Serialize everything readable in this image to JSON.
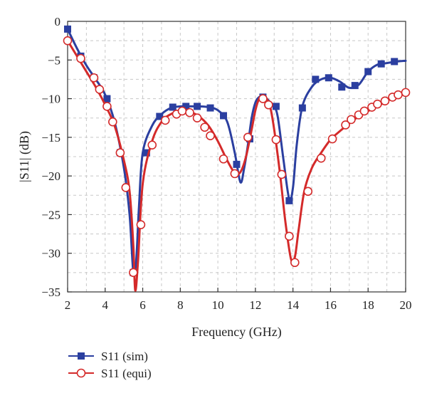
{
  "chart_data": {
    "type": "line",
    "xlabel": "Frequency (GHz)",
    "ylabel": "|S11| (dB)",
    "xlim": [
      2,
      20
    ],
    "ylim": [
      -35,
      0
    ],
    "xticks": [
      2,
      4,
      6,
      8,
      10,
      12,
      14,
      16,
      18,
      20
    ],
    "yticks": [
      0,
      -5,
      -10,
      -15,
      -20,
      -25,
      -30,
      -35
    ],
    "grid": true,
    "legend_position": "bottom-left",
    "series": [
      {
        "name": "S11 (sim)",
        "color": "#2b3fa0",
        "marker": "square-filled",
        "x": [
          2.0,
          2.5,
          3.0,
          3.5,
          4.0,
          4.5,
          5.0,
          5.3,
          5.5,
          5.65,
          5.8,
          6.0,
          6.5,
          7.0,
          7.5,
          8.0,
          8.5,
          9.0,
          9.5,
          10.0,
          10.5,
          10.9,
          11.2,
          11.4,
          11.6,
          11.8,
          12.0,
          12.2,
          12.4,
          12.6,
          12.8,
          13.0,
          13.2,
          13.5,
          13.8,
          14.0,
          14.2,
          14.5,
          15.0,
          15.5,
          16.0,
          16.5,
          17.0,
          17.5,
          18.0,
          18.5,
          19.0,
          19.5,
          20.0
        ],
        "y": [
          -1.0,
          -3.5,
          -5.7,
          -7.5,
          -9.5,
          -13.0,
          -19.0,
          -25.0,
          -32.5,
          -31.0,
          -24.0,
          -17.0,
          -13.5,
          -12.0,
          -11.2,
          -11.0,
          -11.0,
          -11.0,
          -11.1,
          -11.5,
          -13.0,
          -17.0,
          -20.8,
          -19.0,
          -16.0,
          -12.5,
          -10.5,
          -9.8,
          -9.8,
          -10.0,
          -10.5,
          -11.0,
          -12.5,
          -18.0,
          -23.0,
          -21.5,
          -16.0,
          -11.0,
          -8.5,
          -7.5,
          -7.3,
          -7.8,
          -8.6,
          -8.2,
          -6.5,
          -5.6,
          -5.4,
          -5.2,
          -5.1
        ],
        "markers_x": [
          2.0,
          2.7,
          3.4,
          4.1,
          4.8,
          5.5,
          6.2,
          6.9,
          7.6,
          8.3,
          8.9,
          9.6,
          10.3,
          11.0,
          11.7,
          12.4,
          13.1,
          13.8,
          14.5,
          15.2,
          15.9,
          16.6,
          17.3,
          18.0,
          18.7,
          19.4
        ],
        "markers_y": [
          -1.0,
          -4.5,
          -7.3,
          -10.0,
          -17.0,
          -32.5,
          -17.0,
          -12.3,
          -11.1,
          -11.0,
          -11.0,
          -11.2,
          -12.2,
          -18.5,
          -15.2,
          -9.8,
          -11.0,
          -23.2,
          -11.2,
          -7.5,
          -7.3,
          -8.5,
          -8.3,
          -6.5,
          -5.5,
          -5.2
        ]
      },
      {
        "name": "S11 (equi)",
        "color": "#d42a2a",
        "marker": "circle-open",
        "x": [
          2.0,
          2.5,
          3.0,
          3.5,
          4.0,
          4.5,
          5.0,
          5.3,
          5.5,
          5.6,
          5.75,
          6.0,
          6.5,
          7.0,
          7.5,
          8.0,
          8.5,
          9.0,
          9.5,
          10.0,
          10.5,
          10.9,
          11.2,
          11.5,
          11.8,
          12.0,
          12.2,
          12.4,
          12.6,
          12.8,
          13.0,
          13.3,
          13.6,
          13.9,
          14.1,
          14.3,
          14.6,
          15.0,
          15.5,
          16.0,
          16.5,
          17.0,
          17.5,
          18.0,
          18.5,
          19.0,
          19.5,
          20.0
        ],
        "y": [
          -2.5,
          -4.5,
          -6.5,
          -8.5,
          -10.8,
          -13.5,
          -18.0,
          -22.0,
          -29.0,
          -34.8,
          -31.0,
          -21.0,
          -15.5,
          -13.0,
          -12.0,
          -11.6,
          -11.7,
          -12.3,
          -13.5,
          -15.5,
          -18.0,
          -19.6,
          -19.5,
          -17.5,
          -14.0,
          -11.5,
          -10.0,
          -9.7,
          -10.0,
          -11.2,
          -14.0,
          -19.5,
          -26.0,
          -30.8,
          -30.5,
          -27.0,
          -22.0,
          -19.0,
          -17.0,
          -15.3,
          -14.2,
          -13.2,
          -12.3,
          -11.6,
          -11.0,
          -10.3,
          -9.7,
          -9.3
        ],
        "markers_x": [
          2.0,
          2.7,
          3.4,
          3.7,
          4.1,
          4.4,
          4.8,
          5.1,
          5.5,
          5.9,
          6.5,
          7.2,
          7.8,
          8.1,
          8.5,
          8.9,
          9.3,
          9.6,
          10.3,
          10.9,
          11.6,
          12.4,
          12.7,
          13.1,
          13.4,
          13.8,
          14.1,
          14.8,
          15.5,
          16.1,
          16.8,
          17.1,
          17.5,
          17.8,
          18.2,
          18.5,
          18.9,
          19.3,
          19.6,
          20.0
        ],
        "markers_y": [
          -2.5,
          -4.8,
          -7.3,
          -8.8,
          -11.0,
          -13.0,
          -17.0,
          -21.5,
          -32.5,
          -26.3,
          -16.0,
          -12.8,
          -12.0,
          -11.6,
          -11.8,
          -12.5,
          -13.7,
          -14.8,
          -17.8,
          -19.7,
          -15.0,
          -10.0,
          -10.8,
          -15.3,
          -19.8,
          -27.8,
          -31.2,
          -22.0,
          -17.7,
          -15.2,
          -13.4,
          -12.7,
          -12.1,
          -11.6,
          -11.1,
          -10.7,
          -10.3,
          -9.8,
          -9.5,
          -9.2
        ]
      }
    ]
  }
}
